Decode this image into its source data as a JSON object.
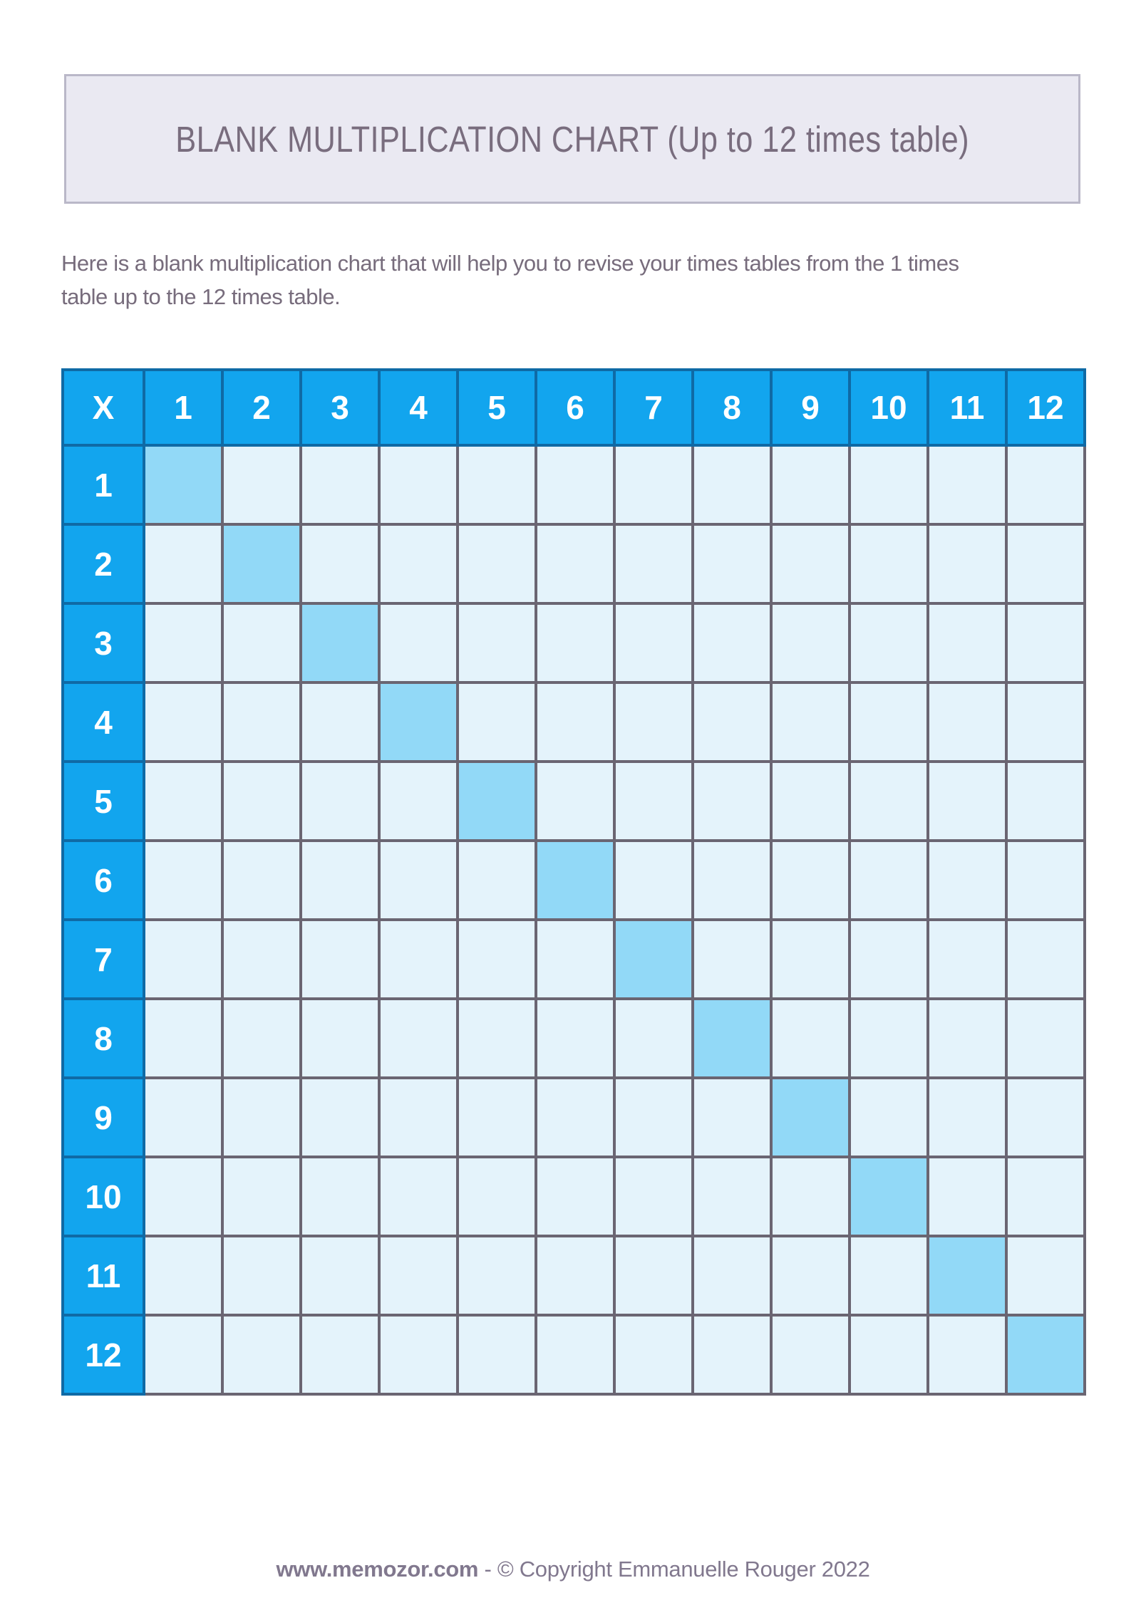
{
  "banner": {
    "title": "BLANK MULTIPLICATION CHART (Up to 12 times table)"
  },
  "intro": {
    "lines": [
      "Here is a blank multiplication chart that will help you to revise your times tables from the 1 times",
      "table up to the 12 times table."
    ]
  },
  "chart_data": {
    "type": "table",
    "title": "Blank multiplication chart (1 to 12 times tables)",
    "corner_label": "X",
    "column_headers": [
      "1",
      "2",
      "3",
      "4",
      "5",
      "6",
      "7",
      "8",
      "9",
      "10",
      "11",
      "12"
    ],
    "row_headers": [
      "1",
      "2",
      "3",
      "4",
      "5",
      "6",
      "7",
      "8",
      "9",
      "10",
      "11",
      "12"
    ],
    "cells_blank": true,
    "highlighted_diagonal": true
  },
  "footer": {
    "site": "www.memozor.com",
    "rest": " - © Copyright Emmanuelle Rouger 2022"
  },
  "colors": {
    "header_bg": "#12a5ee",
    "header_text": "#ffffff",
    "header_border": "#0f6aa5",
    "grid_border": "#6a6572",
    "cell_bg": "#e4f3fb",
    "diagonal_bg": "#92d9f7",
    "banner_bg": "#eae9f2",
    "banner_border": "#bab8c8",
    "title_text": "#796d7e",
    "intro_text": "#776c7c",
    "footer_text": "#81788e"
  }
}
